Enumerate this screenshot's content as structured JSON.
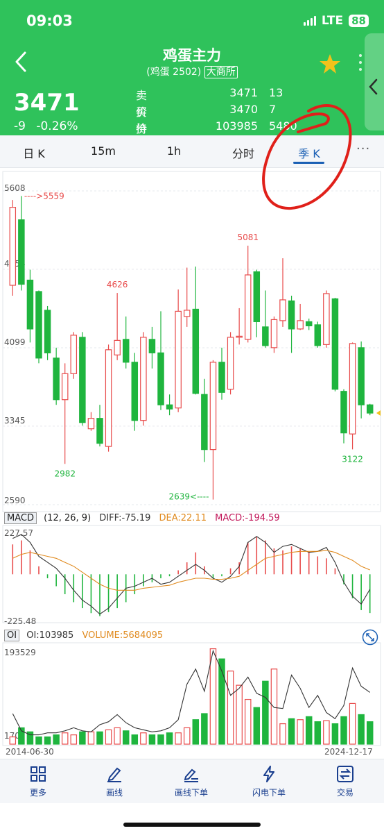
{
  "status": {
    "time": "09:03",
    "network": "LTE",
    "battery": "88"
  },
  "header": {
    "title": "鸡蛋主力",
    "subtitle_name": "(鸡蛋 2502)",
    "exchange": "大商所",
    "price": "3471",
    "change": "-9",
    "change_pct": "-0.26%",
    "quotes": [
      {
        "label": "卖价",
        "value": "3471",
        "qty": "13"
      },
      {
        "label": "买价",
        "value": "3470",
        "qty": "7"
      },
      {
        "label": "持仓",
        "value": "103985",
        "qty": "5480"
      }
    ]
  },
  "tabs": [
    {
      "label": "日 K"
    },
    {
      "label": "15m"
    },
    {
      "label": "1h"
    },
    {
      "label": "分时"
    },
    {
      "label": "季 K"
    }
  ],
  "tabs_more": "···",
  "chart_data": {
    "type": "candlestick",
    "period": "quarterly",
    "x_start": "2014-06-30",
    "x_end": "2024-12-17",
    "y_ticks": [
      "5608",
      "4854",
      "4099",
      "3345",
      "2590"
    ],
    "ylim": [
      2590,
      5608
    ],
    "annotations": [
      {
        "text": "---->5559",
        "value": 5559
      },
      {
        "text": "4626",
        "value": 4626
      },
      {
        "text": "5081",
        "value": 5081
      },
      {
        "text": "2982",
        "value": 2982
      },
      {
        "text": "2639<----",
        "value": 2639
      },
      {
        "text": "3122",
        "value": 3122
      }
    ],
    "candles": [
      {
        "o": 4700,
        "c": 5450,
        "h": 5520,
        "l": 4600
      },
      {
        "o": 5330,
        "c": 4710,
        "h": 5559,
        "l": 4650
      },
      {
        "o": 4750,
        "c": 4280,
        "h": 4850,
        "l": 4150
      },
      {
        "o": 4640,
        "c": 4000,
        "h": 4650,
        "l": 3950
      },
      {
        "o": 4460,
        "c": 4050,
        "h": 4500,
        "l": 3980
      },
      {
        "o": 4000,
        "c": 3600,
        "h": 4100,
        "l": 3550
      },
      {
        "o": 3600,
        "c": 3850,
        "h": 3950,
        "l": 2982
      },
      {
        "o": 3850,
        "c": 4220,
        "h": 4250,
        "l": 3800
      },
      {
        "o": 4200,
        "c": 3380,
        "h": 4250,
        "l": 3350
      },
      {
        "o": 3320,
        "c": 3420,
        "h": 3480,
        "l": 3300
      },
      {
        "o": 3420,
        "c": 3180,
        "h": 3550,
        "l": 3150
      },
      {
        "o": 3150,
        "c": 4080,
        "h": 4130,
        "l": 3100
      },
      {
        "o": 4030,
        "c": 4170,
        "h": 4626,
        "l": 3980
      },
      {
        "o": 4180,
        "c": 3960,
        "h": 4400,
        "l": 3900
      },
      {
        "o": 3960,
        "c": 3400,
        "h": 4050,
        "l": 3300
      },
      {
        "o": 3400,
        "c": 4200,
        "h": 4250,
        "l": 3350
      },
      {
        "o": 4180,
        "c": 4050,
        "h": 4300,
        "l": 3900
      },
      {
        "o": 4050,
        "c": 3550,
        "h": 4450,
        "l": 3500
      },
      {
        "o": 3550,
        "c": 3510,
        "h": 3650,
        "l": 3450
      },
      {
        "o": 3520,
        "c": 4450,
        "h": 4660,
        "l": 3480
      },
      {
        "o": 4400,
        "c": 4460,
        "h": 4870,
        "l": 4300
      },
      {
        "o": 4470,
        "c": 3660,
        "h": 4880,
        "l": 3650
      },
      {
        "o": 3650,
        "c": 3120,
        "h": 3800,
        "l": 3000
      },
      {
        "o": 3120,
        "c": 3960,
        "h": 3980,
        "l": 2639
      },
      {
        "o": 3960,
        "c": 3670,
        "h": 4100,
        "l": 3600
      },
      {
        "o": 3700,
        "c": 4200,
        "h": 4250,
        "l": 3650
      },
      {
        "o": 4200,
        "c": 4210,
        "h": 4480,
        "l": 4130
      },
      {
        "o": 4180,
        "c": 4800,
        "h": 5081,
        "l": 4150
      },
      {
        "o": 4830,
        "c": 4350,
        "h": 4850,
        "l": 4200
      },
      {
        "o": 4300,
        "c": 4120,
        "h": 4650,
        "l": 4100
      },
      {
        "o": 4100,
        "c": 4370,
        "h": 4400,
        "l": 4050
      },
      {
        "o": 4360,
        "c": 4560,
        "h": 4960,
        "l": 4300
      },
      {
        "o": 4550,
        "c": 4280,
        "h": 4600,
        "l": 4050
      },
      {
        "o": 4280,
        "c": 4360,
        "h": 4520,
        "l": 4270
      },
      {
        "o": 4350,
        "c": 4310,
        "h": 4380,
        "l": 4270
      },
      {
        "o": 4320,
        "c": 4120,
        "h": 4350,
        "l": 4100
      },
      {
        "o": 4130,
        "c": 4620,
        "h": 4650,
        "l": 4100
      },
      {
        "o": 4570,
        "c": 3700,
        "h": 4580,
        "l": 3680
      },
      {
        "o": 3680,
        "c": 3280,
        "h": 3700,
        "l": 3180
      },
      {
        "o": 3270,
        "c": 4140,
        "h": 4150,
        "l": 3122
      },
      {
        "o": 4100,
        "c": 3550,
        "h": 4160,
        "l": 3420
      },
      {
        "o": 3550,
        "c": 3471,
        "h": 3560,
        "l": 3450
      }
    ],
    "macd": {
      "label": "MACD",
      "params": "(12, 26, 9)",
      "diff": "DIFF:-75.19",
      "dea": "DEA:22.11",
      "value": "MACD:-194.59",
      "ylim": [
        -225.48,
        227.57
      ],
      "y_ticks": [
        "227.57",
        "-225.48"
      ],
      "hist": [
        150,
        170,
        120,
        40,
        -20,
        -60,
        -100,
        -140,
        -170,
        -195,
        -210,
        -190,
        -170,
        -140,
        -100,
        -60,
        -40,
        -20,
        -10,
        20,
        60,
        110,
        40,
        -20,
        -10,
        30,
        60,
        160,
        190,
        170,
        130,
        120,
        140,
        130,
        110,
        90,
        80,
        30,
        -50,
        -120,
        -180,
        -194.59
      ],
      "diff_line": [
        180,
        200,
        160,
        90,
        60,
        30,
        -20,
        -80,
        -130,
        -160,
        -200,
        -170,
        -120,
        -70,
        -60,
        -40,
        -20,
        -50,
        -40,
        -10,
        20,
        50,
        20,
        -20,
        -40,
        -10,
        40,
        160,
        190,
        160,
        110,
        140,
        150,
        130,
        110,
        115,
        135,
        60,
        -40,
        -110,
        -150,
        -75.19
      ],
      "dea_line": [
        80,
        100,
        110,
        100,
        90,
        80,
        60,
        40,
        10,
        -20,
        -50,
        -70,
        -80,
        -80,
        -80,
        -70,
        -65,
        -60,
        -55,
        -40,
        -30,
        -20,
        -20,
        -25,
        -25,
        -20,
        -10,
        20,
        50,
        80,
        90,
        100,
        110,
        115,
        115,
        115,
        120,
        110,
        90,
        70,
        40,
        22.11
      ]
    },
    "oi": {
      "label": "OI",
      "oi_value": "OI:103985",
      "volume": "VOLUME:5684095",
      "y_ticks": [
        "193529",
        "1702"
      ],
      "ylim": [
        1702,
        193529
      ],
      "volume_bars": [
        16000,
        34000,
        26000,
        16000,
        16000,
        20000,
        24000,
        20000,
        26000,
        26000,
        26000,
        30000,
        34000,
        28000,
        20000,
        24000,
        20000,
        20000,
        24000,
        24000,
        34000,
        50000,
        62000,
        190000,
        170000,
        146000,
        118000,
        90000,
        74000,
        126000,
        150000,
        42000,
        52000,
        50000,
        56000,
        46000,
        48000,
        42000,
        56000,
        82000,
        60000,
        46000
      ],
      "oi_line": [
        62000,
        28000,
        20000,
        20000,
        24000,
        24000,
        28000,
        34000,
        28000,
        26000,
        40000,
        46000,
        60000,
        44000,
        34000,
        30000,
        26000,
        28000,
        34000,
        50000,
        120000,
        150000,
        106000,
        186000,
        146000,
        98000,
        112000,
        134000,
        102000,
        94000,
        74000,
        72000,
        138000,
        112000,
        74000,
        98000,
        64000,
        52000,
        78000,
        152000,
        116000,
        103985
      ]
    }
  },
  "toolbar": [
    {
      "label": "更多"
    },
    {
      "label": "画线"
    },
    {
      "label": "画线下单"
    },
    {
      "label": "闪电下单"
    },
    {
      "label": "交易"
    }
  ],
  "colors": {
    "up": "#e84b4b",
    "down": "#1fb53e",
    "header": "#2fc25b",
    "accent": "#1a5fb4",
    "annotation": "#e0201a"
  }
}
